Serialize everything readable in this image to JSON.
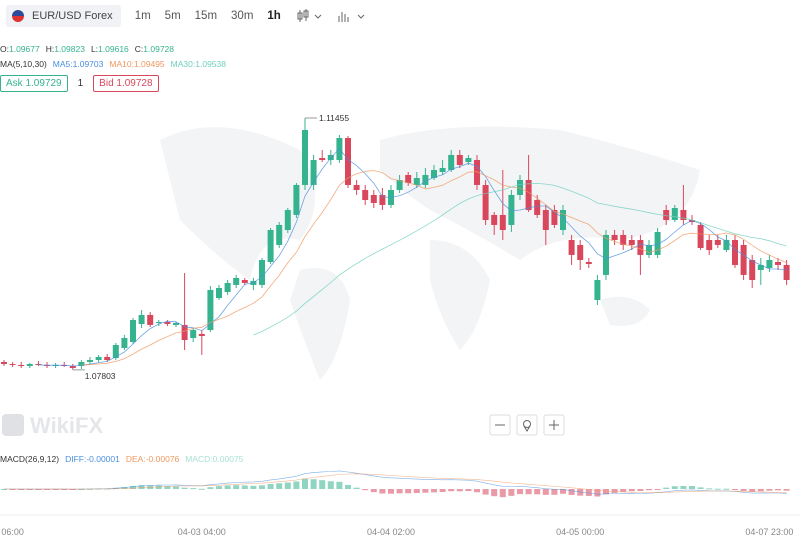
{
  "header": {
    "symbol": "EUR/USD Forex",
    "timeframes": [
      "1m",
      "5m",
      "15m",
      "30m",
      "1h"
    ],
    "active_timeframe": 4,
    "ohlc": [
      {
        "label": "O:",
        "value": 1.09677
      },
      {
        "label": "H:",
        "value": 1.09823
      },
      {
        "label": "L:",
        "value": 1.09616
      },
      {
        "label": "C:",
        "value": 1.09728
      }
    ],
    "ma_title": "MA(5,10,30)",
    "ma": [
      {
        "label": "MA5:",
        "value": 1.09703,
        "period": 5,
        "color": "#4a8fe0"
      },
      {
        "label": "MA10:",
        "value": 1.09495,
        "period": 10,
        "color": "#f0975f"
      },
      {
        "label": "MA30:",
        "value": 1.09538,
        "period": 30,
        "color": "#6fcfbd"
      }
    ],
    "ask": {
      "label": "Ask",
      "value": 1.09729
    },
    "qty": 1,
    "bid": {
      "label": "Bid",
      "value": 1.09728
    },
    "watermark": "WikiFX"
  },
  "macd": {
    "title": "MACD(26,9,12)",
    "slow": 26,
    "signal": 9,
    "fast": 12,
    "items": [
      {
        "label": "DIFF:",
        "value": -1e-05,
        "color": "#4a8fe0"
      },
      {
        "label": "DEA:",
        "value": -0.00076,
        "color": "#f0975f"
      },
      {
        "label": "MACD:",
        "value": 0.00075,
        "color": "#a9e3d6"
      }
    ]
  },
  "chart_data": {
    "type": "candlestick",
    "ylim": [
      1.07366,
      1.11716
    ],
    "up_color": "#35b38f",
    "down_color": "#d9475d",
    "categories": [
      null,
      "06:00",
      null,
      null,
      null,
      null,
      null,
      null,
      null,
      null,
      null,
      null,
      null,
      null,
      null,
      null,
      null,
      null,
      null,
      null,
      null,
      null,
      null,
      "04-03 04:00",
      null,
      null,
      null,
      null,
      null,
      null,
      null,
      null,
      null,
      null,
      null,
      null,
      null,
      null,
      null,
      null,
      null,
      null,
      null,
      null,
      null,
      "04-04 02:00",
      null,
      null,
      null,
      null,
      null,
      null,
      null,
      null,
      null,
      null,
      null,
      null,
      null,
      null,
      null,
      null,
      null,
      null,
      null,
      null,
      null,
      "04-05 00:00",
      null,
      null,
      null,
      null,
      null,
      null,
      null,
      null,
      null,
      null,
      null,
      null,
      null,
      null,
      null,
      null,
      null,
      null,
      null,
      null,
      null,
      "04-07 23:00",
      null,
      null
    ],
    "open": [
      1.07917,
      1.07888,
      1.07874,
      1.07859,
      1.07888,
      1.07874,
      1.07859,
      1.07874,
      1.07859,
      1.07859,
      1.07917,
      1.07946,
      1.0799,
      1.07975,
      1.0812,
      1.08207,
      1.08468,
      1.08599,
      1.08483,
      1.08497,
      1.08454,
      1.08454,
      1.08265,
      1.08323,
      1.08381,
      1.08845,
      1.08932,
      1.09034,
      1.09106,
      1.09034,
      1.09034,
      1.09367,
      1.09614,
      1.09831,
      1.10049,
      1.10484,
      1.10484,
      1.10875,
      1.10846,
      1.10846,
      1.11165,
      1.10484,
      1.10411,
      1.10339,
      1.10339,
      1.10194,
      1.10411,
      1.10629,
      1.10484,
      1.10484,
      1.10585,
      1.10672,
      1.10701,
      1.10919,
      1.10817,
      1.10846,
      1.10484,
      1.10049,
      1.10049,
      1.09904,
      1.10339,
      1.10556,
      1.10266,
      1.10121,
      1.10121,
      1.09831,
      1.09686,
      1.09614,
      1.09367,
      1.08816,
      1.09179,
      1.09759,
      1.09759,
      1.09686,
      1.09686,
      1.09469,
      1.09469,
      1.10121,
      1.09976,
      1.10121,
      1.09976,
      1.09904,
      1.09686,
      1.09686,
      1.09541,
      1.09686,
      1.09614,
      1.09396,
      1.09251,
      1.0928,
      1.09367,
      1.09324
    ],
    "high": [
      1.07946,
      1.07917,
      1.07917,
      1.07903,
      1.07932,
      1.07917,
      1.07903,
      1.07917,
      1.07888,
      1.07946,
      1.0799,
      1.08019,
      1.08033,
      1.08193,
      1.08309,
      1.08555,
      1.08671,
      1.08642,
      1.08526,
      1.08526,
      1.08497,
      1.09208,
      1.0841,
      1.08381,
      1.09019,
      1.09034,
      1.09106,
      1.09179,
      1.09135,
      1.09135,
      1.09425,
      1.0986,
      1.09947,
      1.1015,
      1.10513,
      1.11455,
      1.10919,
      1.10991,
      1.10991,
      1.11209,
      1.11194,
      1.10556,
      1.10484,
      1.10411,
      1.1044,
      1.10484,
      1.10629,
      1.10672,
      1.10672,
      1.1073,
      1.10774,
      1.10846,
      1.10991,
      1.10991,
      1.10919,
      1.10919,
      1.10556,
      1.10092,
      1.10701,
      1.10411,
      1.10629,
      1.10919,
      1.10339,
      1.10194,
      1.10194,
      1.10194,
      1.09759,
      1.09686,
      1.09425,
      1.09179,
      1.09831,
      1.09831,
      1.09831,
      1.09759,
      1.09759,
      1.09686,
      1.0986,
      1.10194,
      1.10194,
      1.10484,
      1.10049,
      1.09947,
      1.09759,
      1.09759,
      1.09759,
      1.09759,
      1.09686,
      1.09469,
      1.09425,
      1.09469,
      1.09425,
      1.09396
    ],
    "low": [
      1.07859,
      1.07845,
      1.0783,
      1.0783,
      1.07859,
      1.0783,
      1.0783,
      1.07845,
      1.07803,
      1.07816,
      1.07888,
      1.07917,
      1.07917,
      1.07946,
      1.08091,
      1.08178,
      1.0841,
      1.08425,
      1.08439,
      1.08439,
      1.08425,
      1.08091,
      1.08207,
      1.08019,
      1.08352,
      1.08816,
      1.08889,
      1.0899,
      1.09034,
      1.08961,
      1.0899,
      1.09338,
      1.0957,
      1.09788,
      1.10005,
      1.10411,
      1.10411,
      1.10817,
      1.10774,
      1.10803,
      1.1044,
      1.10339,
      1.10194,
      1.1015,
      1.10121,
      1.1015,
      1.10368,
      1.10469,
      1.1044,
      1.1044,
      1.10556,
      1.10629,
      1.10672,
      1.1073,
      1.10774,
      1.10411,
      1.09904,
      1.09759,
      1.09686,
      1.09802,
      1.10266,
      1.10092,
      1.10005,
      1.09614,
      1.0986,
      1.09759,
      1.09324,
      1.09251,
      1.0928,
      1.08744,
      1.09106,
      1.09614,
      1.09541,
      1.09541,
      1.09179,
      1.09425,
      1.09425,
      1.09904,
      1.09947,
      1.09904,
      1.09904,
      1.09541,
      1.09469,
      1.0957,
      1.09512,
      1.0928,
      1.09106,
      1.0899,
      1.09034,
      1.09222,
      1.09251,
      1.09034
    ],
    "close": [
      1.07888,
      1.07874,
      1.07859,
      1.07888,
      1.07874,
      1.07859,
      1.07874,
      1.07859,
      1.0783,
      1.07917,
      1.07946,
      1.0799,
      1.07946,
      1.08164,
      1.08265,
      1.08526,
      1.08599,
      1.08454,
      1.08497,
      1.08468,
      1.08483,
      1.08236,
      1.08381,
      1.08294,
      1.08961,
      1.0899,
      1.09063,
      1.09135,
      1.09063,
      1.09092,
      1.09396,
      1.09831,
      1.09904,
      1.10121,
      1.10484,
      1.11281,
      1.10846,
      1.10846,
      1.10919,
      1.11165,
      1.10484,
      1.10411,
      1.10266,
      1.10223,
      1.10194,
      1.10411,
      1.10556,
      1.10513,
      1.10585,
      1.10629,
      1.10701,
      1.1073,
      1.10919,
      1.10774,
      1.10875,
      1.10484,
      1.09976,
      1.09904,
      1.09831,
      1.10339,
      1.10556,
      1.10121,
      1.10049,
      1.09831,
      1.09904,
      1.10121,
      1.09469,
      1.09396,
      1.09338,
      1.09106,
      1.09759,
      1.09686,
      1.09614,
      1.09614,
      1.09469,
      1.09614,
      1.09802,
      1.09976,
      1.1015,
      1.09976,
      1.09947,
      1.0957,
      1.09541,
      1.09614,
      1.09686,
      1.09324,
      1.09179,
      1.09106,
      1.09324,
      1.09396,
      1.09324,
      1.09106
    ]
  }
}
